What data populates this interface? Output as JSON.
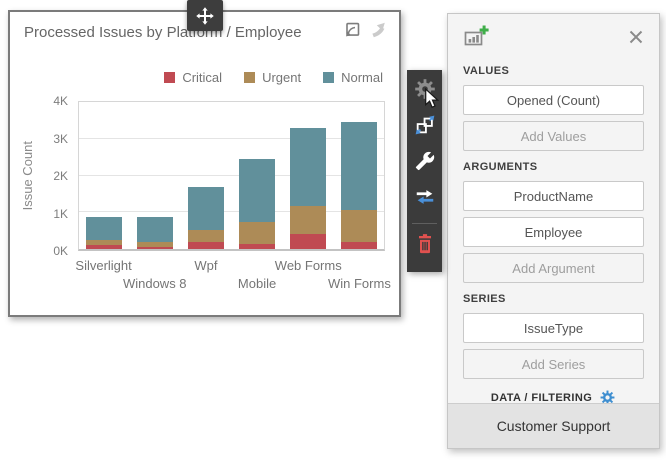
{
  "card": {
    "title": "Processed Issues by Platform / Employee",
    "icons": {
      "export": "export-icon",
      "selection": "pointer-icon"
    }
  },
  "chart_data": {
    "type": "bar",
    "stacked": true,
    "title": "Processed Issues by Platform / Employee",
    "categories": [
      "Silverlight",
      "Windows 8",
      "Wpf",
      "Mobile",
      "Web Forms",
      "Win Forms"
    ],
    "series": [
      {
        "name": "Critical",
        "color": "#c04a52",
        "values": [
          100,
          60,
          200,
          140,
          420,
          200
        ]
      },
      {
        "name": "Urgent",
        "color": "#ad8b57",
        "values": [
          150,
          140,
          320,
          600,
          750,
          850
        ]
      },
      {
        "name": "Normal",
        "color": "#61909b",
        "values": [
          620,
          670,
          1180,
          1710,
          2130,
          2400
        ]
      }
    ],
    "totals": [
      870,
      870,
      1700,
      2450,
      3300,
      3450
    ],
    "xlabel": "",
    "ylabel": "Issue Count",
    "yticks": [
      "0K",
      "1K",
      "2K",
      "3K",
      "4K"
    ],
    "ylim": [
      0,
      4000
    ],
    "grid": true,
    "legend_position": "top-right"
  },
  "move_handle": {
    "icon": "move-icon"
  },
  "floating_toolbar": {
    "background": "#3b3b3b",
    "items": [
      {
        "icon": "gear-icon",
        "color": "#8d8d8d",
        "state": "hovered"
      },
      {
        "icon": "interactivity-squares-icon",
        "color": "#ffffff",
        "accent": "#4a90d9"
      },
      {
        "icon": "wrench-icon",
        "color": "#ffffff"
      },
      {
        "icon": "convert-arrows-icon",
        "color": "#ffffff",
        "accent": "#4a90d9"
      },
      {
        "icon": "trash-icon",
        "color": "#e0514f"
      }
    ],
    "cursor": "mouse-cursor"
  },
  "panel": {
    "header": {
      "add_chart_icon": "chart-add-icon",
      "close_icon": "close-icon",
      "plus_color": "#3fae49"
    },
    "sections": [
      {
        "label": "VALUES",
        "fields": [
          "Opened (Count)"
        ],
        "add_label": "Add Values"
      },
      {
        "label": "ARGUMENTS",
        "fields": [
          "ProductName",
          "Employee"
        ],
        "add_label": "Add Argument"
      },
      {
        "label": "SERIES",
        "fields": [
          "IssueType"
        ],
        "add_label": "Add Series"
      }
    ],
    "data_filtering": {
      "label": "DATA / FILTERING",
      "icon": "gear-icon",
      "icon_color": "#3e8ed0"
    },
    "footer": {
      "label": "Customer Support"
    }
  }
}
